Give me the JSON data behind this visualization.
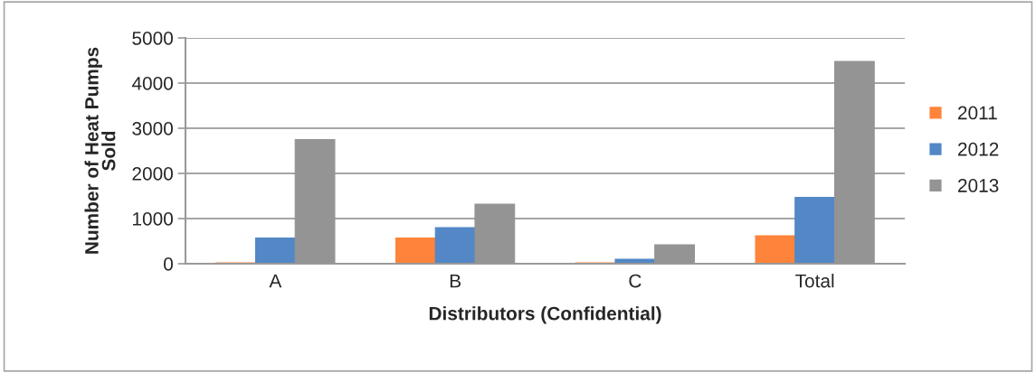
{
  "chart_data": {
    "type": "bar",
    "xlabel": "Distributors (Confidential)",
    "ylabel": "Number of Heat Pumps Sold",
    "categories": [
      "A",
      "B",
      "C",
      "Total"
    ],
    "series": [
      {
        "name": "2011",
        "color": "#fe843b",
        "values": [
          20,
          570,
          20,
          620
        ]
      },
      {
        "name": "2012",
        "color": "#5387c6",
        "values": [
          570,
          800,
          100,
          1470
        ]
      },
      {
        "name": "2013",
        "color": "#949494",
        "values": [
          2750,
          1320,
          420,
          4480
        ]
      }
    ],
    "ylim": [
      0,
      5000
    ],
    "yticks": [
      0,
      1000,
      2000,
      3000,
      4000,
      5000
    ],
    "grid": "y",
    "legend": "right"
  }
}
